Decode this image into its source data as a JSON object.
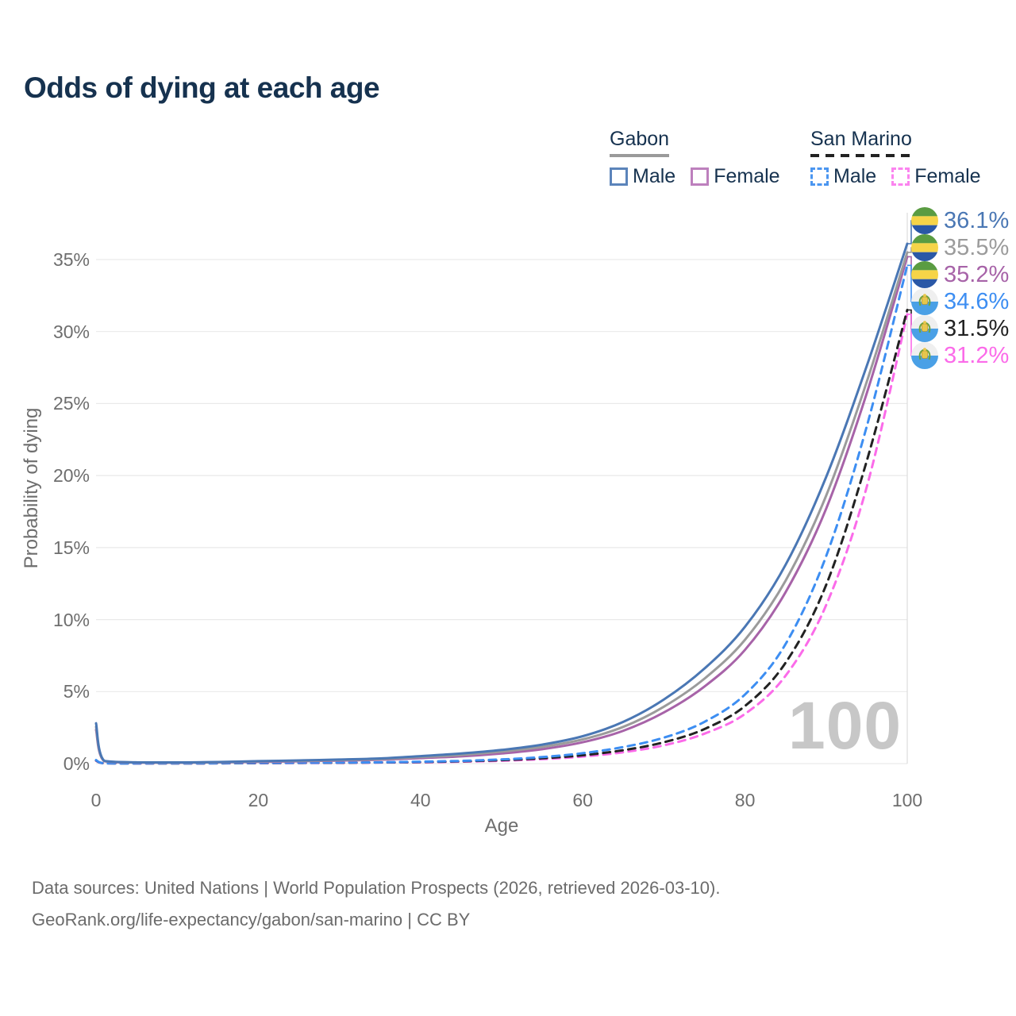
{
  "title": "Odds of dying at each age",
  "legend": {
    "groups": [
      {
        "label": "Gabon",
        "underline_style": "solid",
        "underline_color": "#9a9a9a",
        "items": [
          {
            "label": "Male",
            "swatch_style": "solid",
            "swatch_color": "#5b84ba"
          },
          {
            "label": "Female",
            "swatch_style": "solid",
            "swatch_color": "#bd80bd"
          }
        ]
      },
      {
        "label": "San Marino",
        "underline_style": "dashed",
        "underline_color": "#222222",
        "items": [
          {
            "label": "Male",
            "swatch_style": "dashed",
            "swatch_color": "#4b96f0"
          },
          {
            "label": "Female",
            "swatch_style": "dashed",
            "swatch_color": "#fb84ef"
          }
        ]
      }
    ]
  },
  "chart_data": {
    "type": "line",
    "title": "Odds of dying at each age",
    "xlabel": "Age",
    "ylabel": "Probability of dying",
    "xlim": [
      0,
      100
    ],
    "ylim": [
      0,
      35
    ],
    "xticks": [
      0,
      20,
      40,
      60,
      80,
      100
    ],
    "yticks": [
      0,
      5,
      10,
      15,
      20,
      25,
      30,
      35
    ],
    "ytick_suffix": "%",
    "grid": "horizontal",
    "hover_age": "100",
    "x": [
      0,
      1,
      5,
      10,
      15,
      20,
      25,
      30,
      35,
      40,
      45,
      50,
      55,
      60,
      65,
      70,
      75,
      80,
      85,
      90,
      95,
      100
    ],
    "series": [
      {
        "name": "Gabon Male",
        "group": "Gabon",
        "sex": "Male",
        "style": "solid",
        "color": "#4a77b4",
        "flag": "gabon",
        "end_label": "36.1%",
        "values": [
          2.8,
          0.2,
          0.09,
          0.08,
          0.11,
          0.17,
          0.22,
          0.28,
          0.36,
          0.52,
          0.7,
          0.95,
          1.32,
          1.9,
          2.9,
          4.45,
          6.6,
          9.5,
          13.8,
          19.9,
          27.6,
          36.1
        ]
      },
      {
        "name": "Gabon Both sexes",
        "group": "Gabon",
        "sex": "Both",
        "style": "solid",
        "color": "#9b9b9b",
        "flag": "gabon",
        "end_label": "35.5%",
        "values": [
          2.55,
          0.18,
          0.08,
          0.07,
          0.1,
          0.15,
          0.19,
          0.24,
          0.31,
          0.45,
          0.6,
          0.83,
          1.16,
          1.68,
          2.55,
          3.95,
          5.9,
          8.6,
          12.7,
          18.6,
          26.5,
          35.5
        ]
      },
      {
        "name": "Gabon Female",
        "group": "Gabon",
        "sex": "Female",
        "style": "solid",
        "color": "#a763a8",
        "flag": "gabon",
        "end_label": "35.2%",
        "values": [
          2.35,
          0.17,
          0.07,
          0.06,
          0.09,
          0.12,
          0.16,
          0.21,
          0.27,
          0.38,
          0.5,
          0.7,
          1.0,
          1.48,
          2.28,
          3.55,
          5.35,
          7.9,
          11.9,
          17.7,
          25.7,
          35.2
        ]
      },
      {
        "name": "San Marino Male",
        "group": "San Marino",
        "sex": "Male",
        "style": "dashed",
        "color": "#3d8ef2",
        "flag": "san-marino",
        "end_label": "34.6%",
        "values": [
          0.25,
          0.02,
          0.01,
          0.01,
          0.03,
          0.05,
          0.06,
          0.07,
          0.09,
          0.13,
          0.19,
          0.29,
          0.45,
          0.72,
          1.15,
          1.8,
          2.9,
          4.8,
          8.3,
          14.4,
          23.4,
          34.6
        ]
      },
      {
        "name": "San Marino Both sexes",
        "group": "San Marino",
        "sex": "Both",
        "style": "dashed",
        "color": "#222222",
        "flag": "san-marino",
        "end_label": "31.5%",
        "values": [
          0.22,
          0.02,
          0.01,
          0.01,
          0.02,
          0.04,
          0.05,
          0.06,
          0.08,
          0.11,
          0.16,
          0.24,
          0.37,
          0.58,
          0.93,
          1.48,
          2.4,
          4.0,
          7.0,
          12.4,
          21.0,
          31.5
        ]
      },
      {
        "name": "San Marino Female",
        "group": "San Marino",
        "sex": "Female",
        "style": "dashed",
        "color": "#fb6be9",
        "flag": "san-marino",
        "end_label": "31.2%",
        "values": [
          0.2,
          0.02,
          0.01,
          0.01,
          0.02,
          0.03,
          0.04,
          0.05,
          0.07,
          0.09,
          0.13,
          0.2,
          0.31,
          0.49,
          0.79,
          1.27,
          2.08,
          3.45,
          6.1,
          11.0,
          19.2,
          31.2
        ]
      }
    ]
  },
  "footer": {
    "line1": "Data sources: United Nations | World Population Prospects (2026, retrieved 2026-03-10).",
    "line2": "GeoRank.org/life-expectancy/gabon/san-marino | CC BY"
  },
  "colors": {
    "title_text": "#16324f",
    "axis_text": "#6e6e6e",
    "gridline": "#e9e9e9",
    "crosshair": "#dcdcdc",
    "watermark": "#c7c7c7",
    "gabon_flag": {
      "green": "#5a9c42",
      "yellow": "#f6d448",
      "blue": "#2a58a6"
    },
    "san_marino_flag": {
      "white": "#efefef",
      "blue": "#4aa0e6",
      "crest_gold": "#e7c64d",
      "crest_green": "#6aa43f"
    }
  }
}
